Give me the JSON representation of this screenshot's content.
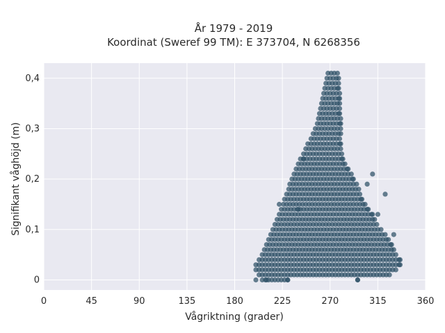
{
  "chart_data": {
    "type": "scatter",
    "title_lines": [
      "År 1979 - 2019",
      "Koordinat (Sweref 99 TM): E 373704, N 6268356"
    ],
    "xlabel": "Vågriktning (grader)",
    "ylabel": "Signifikant våghöjd (m)",
    "xlim": [
      0,
      360
    ],
    "ylim": [
      -0.02,
      0.43
    ],
    "xticks": [
      0,
      45,
      90,
      135,
      180,
      225,
      270,
      315,
      360
    ],
    "xtick_labels": [
      "0",
      "45",
      "90",
      "135",
      "180",
      "225",
      "270",
      "315",
      "360"
    ],
    "yticks": [
      0,
      0.1,
      0.2,
      0.3,
      0.4
    ],
    "ytick_labels": [
      "0",
      "0,1",
      "0,2",
      "0,3",
      "0,4"
    ],
    "grid": true,
    "background_color": "#e9e9f1",
    "point_color": "#2e5066",
    "envelope": {
      "y_step": 0.01,
      "x_step": 3,
      "rows": [
        [
          0.0,
          206,
          230
        ],
        [
          0.0,
          296,
          296
        ],
        [
          0.01,
          203,
          326
        ],
        [
          0.02,
          200,
          332
        ],
        [
          0.03,
          200,
          336
        ],
        [
          0.04,
          203,
          336
        ],
        [
          0.05,
          206,
          332
        ],
        [
          0.06,
          208,
          330
        ],
        [
          0.07,
          210,
          328
        ],
        [
          0.08,
          212,
          325
        ],
        [
          0.09,
          214,
          322
        ],
        [
          0.1,
          216,
          318
        ],
        [
          0.11,
          218,
          314
        ],
        [
          0.12,
          220,
          312
        ],
        [
          0.13,
          222,
          310
        ],
        [
          0.14,
          224,
          306
        ],
        [
          0.15,
          226,
          303
        ],
        [
          0.16,
          227,
          300
        ],
        [
          0.17,
          229,
          298
        ],
        [
          0.18,
          231,
          297
        ],
        [
          0.19,
          232,
          295
        ],
        [
          0.2,
          234,
          292
        ],
        [
          0.21,
          236,
          290
        ],
        [
          0.22,
          238,
          287
        ],
        [
          0.23,
          240,
          284
        ],
        [
          0.24,
          242,
          282
        ],
        [
          0.25,
          245,
          281
        ],
        [
          0.26,
          247,
          280
        ],
        [
          0.27,
          249,
          280
        ],
        [
          0.28,
          252,
          279
        ],
        [
          0.29,
          254,
          280
        ],
        [
          0.3,
          256,
          280
        ],
        [
          0.31,
          258,
          280
        ],
        [
          0.32,
          259,
          280
        ],
        [
          0.33,
          260,
          279
        ],
        [
          0.34,
          261,
          279
        ],
        [
          0.35,
          262,
          279
        ],
        [
          0.36,
          263,
          279
        ],
        [
          0.37,
          264,
          279
        ],
        [
          0.38,
          265,
          278
        ],
        [
          0.39,
          266,
          278
        ],
        [
          0.4,
          267,
          278
        ],
        [
          0.41,
          268,
          277
        ]
      ],
      "outliers": [
        [
          200,
          0.0
        ],
        [
          210,
          0.0
        ],
        [
          230,
          0.0
        ],
        [
          296,
          0.0
        ],
        [
          305,
          0.19
        ],
        [
          310,
          0.21
        ],
        [
          322,
          0.17
        ],
        [
          245,
          0.24
        ],
        [
          240,
          0.14
        ],
        [
          222,
          0.15
        ],
        [
          330,
          0.09
        ],
        [
          315,
          0.13
        ]
      ]
    }
  }
}
